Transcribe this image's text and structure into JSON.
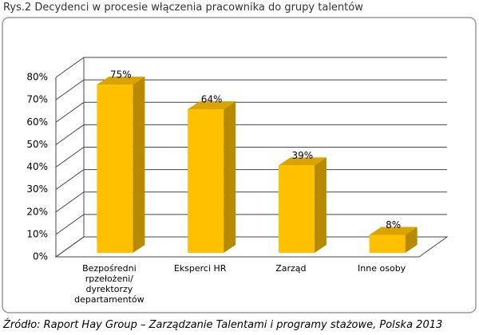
{
  "chart_data": {
    "type": "bar3d",
    "title": "Rys.2 Decydenci w procesie włączenia pracownika do grupy talentów",
    "categories": [
      "Bezpośredni rpzełożeni/ dyrektorzy departamentów",
      "Eksperci HR",
      "Zarząd",
      "Inne osoby"
    ],
    "values": [
      75,
      64,
      39,
      8
    ],
    "value_labels": [
      "75%",
      "64%",
      "39%",
      "8%"
    ],
    "color": "#ffc000",
    "ylim": [
      0,
      80
    ],
    "yticks": [
      {
        "value": 0,
        "label": "0%"
      },
      {
        "value": 10,
        "label": "10%"
      },
      {
        "value": 20,
        "label": "20%"
      },
      {
        "value": 30,
        "label": "30%"
      },
      {
        "value": 40,
        "label": "40%"
      },
      {
        "value": 50,
        "label": "50%"
      },
      {
        "value": 60,
        "label": "60%"
      },
      {
        "value": 70,
        "label": "70%"
      },
      {
        "value": 80,
        "label": "80%"
      }
    ],
    "grid": true,
    "source": "Źródło: Raport Hay Group – Zarządzanie Talentami i programy stażowe, Polska 2013"
  }
}
